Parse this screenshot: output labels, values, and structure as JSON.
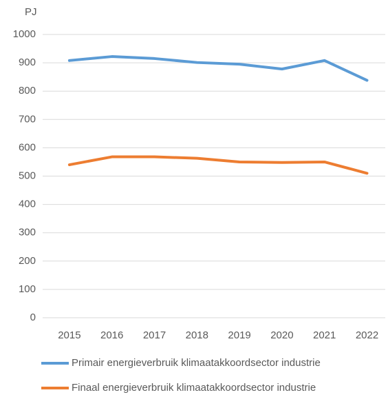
{
  "chart_data": {
    "type": "line",
    "y_label": "PJ",
    "categories": [
      "2015",
      "2016",
      "2017",
      "2018",
      "2019",
      "2020",
      "2021",
      "2022"
    ],
    "series": [
      {
        "name": "Primair energieverbruik klimaatakkoordsector industrie",
        "color": "#5b9bd5",
        "values": [
          908,
          922,
          915,
          901,
          895,
          878,
          908,
          838
        ]
      },
      {
        "name": "Finaal energieverbruik klimaatakkoordsector industrie",
        "color": "#ed7d31",
        "values": [
          540,
          568,
          568,
          563,
          550,
          548,
          550,
          510
        ]
      }
    ],
    "ylim": [
      0,
      1000
    ],
    "yticks": [
      0,
      100,
      200,
      300,
      400,
      500,
      600,
      700,
      800,
      900,
      1000
    ],
    "grid": true
  }
}
